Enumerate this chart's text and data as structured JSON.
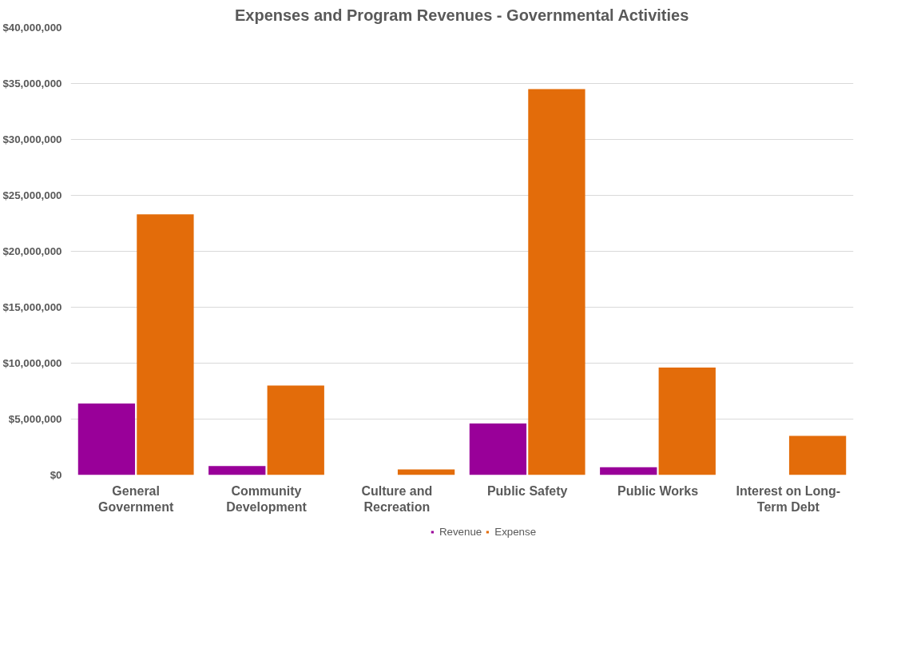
{
  "chart_data": {
    "type": "bar",
    "title": "Expenses and Program Revenues - Governmental Activities",
    "categories": [
      "General Government",
      "Community Development",
      "Culture and Recreation",
      "Public Safety",
      "Public Works",
      "Interest on Long-Term Debt"
    ],
    "series": [
      {
        "name": "Revenue",
        "color": "#990099",
        "values": [
          6400000,
          800000,
          0,
          4600000,
          700000,
          0
        ]
      },
      {
        "name": "Expense",
        "color": "#e36c0a",
        "values": [
          23300000,
          8000000,
          500000,
          34500000,
          9600000,
          3500000
        ]
      }
    ],
    "ylim": [
      0,
      40000000
    ],
    "yticks": [
      {
        "value": 0,
        "label": "$0"
      },
      {
        "value": 5000000,
        "label": "$5,000,000"
      },
      {
        "value": 10000000,
        "label": "$10,000,000"
      },
      {
        "value": 15000000,
        "label": "$15,000,000"
      },
      {
        "value": 20000000,
        "label": "$20,000,000"
      },
      {
        "value": 25000000,
        "label": "$25,000,000"
      },
      {
        "value": 30000000,
        "label": "$30,000,000"
      },
      {
        "value": 35000000,
        "label": "$35,000,000"
      },
      {
        "value": 40000000,
        "label": "$40,000,000"
      }
    ],
    "grid": "y",
    "legend": "bottom"
  }
}
